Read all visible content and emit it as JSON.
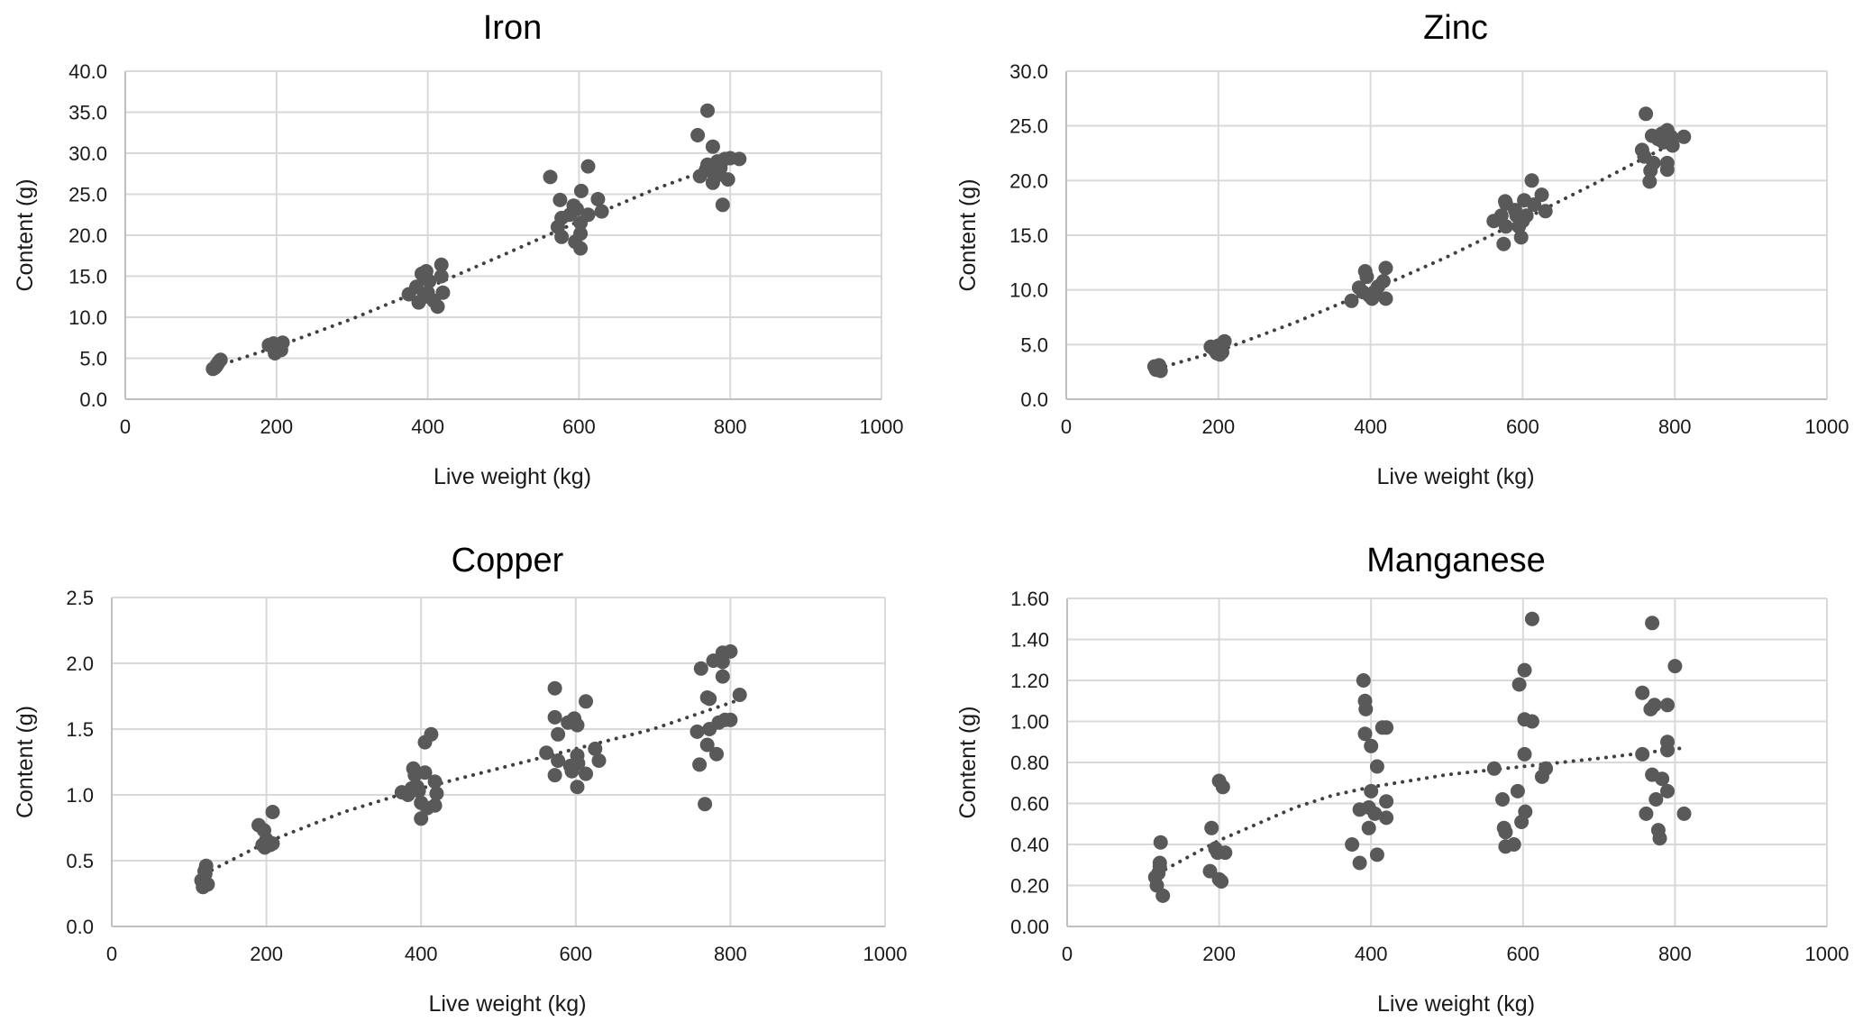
{
  "chart_data": [
    {
      "type": "scatter",
      "title": "Iron",
      "xlabel": "Live weight (kg)",
      "ylabel": "Content (g)",
      "xlim": [
        0,
        1000
      ],
      "ylim": [
        0,
        40
      ],
      "xticks": [
        0,
        200,
        400,
        600,
        800,
        1000
      ],
      "yticks": [
        "0.0",
        "5.0",
        "10.0",
        "15.0",
        "20.0",
        "25.0",
        "30.0",
        "35.0",
        "40.0"
      ],
      "grid": true,
      "legend": "none",
      "points": [
        [
          118,
          3.8
        ],
        [
          120,
          4.0
        ],
        [
          122,
          4.3
        ],
        [
          124,
          4.6
        ],
        [
          126,
          4.8
        ],
        [
          116,
          3.7
        ],
        [
          121,
          4.2
        ],
        [
          190,
          6.6
        ],
        [
          196,
          6.8
        ],
        [
          200,
          6.2
        ],
        [
          198,
          5.6
        ],
        [
          204,
          6.5
        ],
        [
          206,
          6.0
        ],
        [
          208,
          6.9
        ],
        [
          375,
          12.8
        ],
        [
          385,
          13.7
        ],
        [
          388,
          11.8
        ],
        [
          392,
          15.3
        ],
        [
          398,
          15.6
        ],
        [
          402,
          14.4
        ],
        [
          400,
          13.0
        ],
        [
          408,
          12.0
        ],
        [
          413,
          11.3
        ],
        [
          418,
          15.0
        ],
        [
          418,
          16.4
        ],
        [
          420,
          13.0
        ],
        [
          395,
          12.5
        ],
        [
          396,
          14.8
        ],
        [
          562,
          27.1
        ],
        [
          575,
          24.3
        ],
        [
          577,
          22.1
        ],
        [
          572,
          21.0
        ],
        [
          577,
          19.8
        ],
        [
          588,
          22.5
        ],
        [
          593,
          23.6
        ],
        [
          597,
          23.2
        ],
        [
          595,
          19.2
        ],
        [
          602,
          21.5
        ],
        [
          602,
          20.2
        ],
        [
          602,
          18.4
        ],
        [
          603,
          25.4
        ],
        [
          612,
          28.4
        ],
        [
          612,
          22.5
        ],
        [
          625,
          24.4
        ],
        [
          630,
          22.9
        ],
        [
          757,
          32.2
        ],
        [
          770,
          35.2
        ],
        [
          777,
          30.8
        ],
        [
          760,
          27.2
        ],
        [
          768,
          28.0
        ],
        [
          770,
          28.6
        ],
        [
          775,
          27.8
        ],
        [
          777,
          26.4
        ],
        [
          783,
          29.0
        ],
        [
          787,
          28.2
        ],
        [
          785,
          27.4
        ],
        [
          790,
          23.7
        ],
        [
          793,
          29.3
        ],
        [
          800,
          29.4
        ],
        [
          797,
          26.8
        ],
        [
          812,
          29.3
        ]
      ],
      "trendline": {
        "style": "dotted",
        "points": [
          [
            120,
            4.0
          ],
          [
            200,
            6.4
          ],
          [
            300,
            9.8
          ],
          [
            400,
            13.6
          ],
          [
            500,
            17.6
          ],
          [
            600,
            21.7
          ],
          [
            700,
            25.6
          ],
          [
            800,
            29.0
          ]
        ]
      }
    },
    {
      "type": "scatter",
      "title": "Zinc",
      "xlabel": "Live weight (kg)",
      "ylabel": "Content (g)",
      "xlim": [
        0,
        1000
      ],
      "ylim": [
        0,
        30
      ],
      "xticks": [
        0,
        200,
        400,
        600,
        800,
        1000
      ],
      "yticks": [
        "0.0",
        "5.0",
        "10.0",
        "15.0",
        "20.0",
        "25.0",
        "30.0"
      ],
      "grid": true,
      "legend": "none",
      "points": [
        [
          118,
          2.7
        ],
        [
          120,
          2.9
        ],
        [
          122,
          3.1
        ],
        [
          124,
          2.6
        ],
        [
          116,
          3.0
        ],
        [
          190,
          4.8
        ],
        [
          195,
          4.5
        ],
        [
          198,
          4.2
        ],
        [
          200,
          4.9
        ],
        [
          208,
          5.3
        ],
        [
          205,
          4.3
        ],
        [
          202,
          4.1
        ],
        [
          375,
          9.0
        ],
        [
          385,
          10.2
        ],
        [
          390,
          9.8
        ],
        [
          393,
          11.7
        ],
        [
          395,
          11.2
        ],
        [
          398,
          9.5
        ],
        [
          402,
          9.2
        ],
        [
          405,
          9.8
        ],
        [
          410,
          10.3
        ],
        [
          417,
          10.8
        ],
        [
          420,
          12.0
        ],
        [
          420,
          9.2
        ],
        [
          562,
          16.3
        ],
        [
          572,
          16.8
        ],
        [
          577,
          18.1
        ],
        [
          578,
          17.9
        ],
        [
          578,
          15.8
        ],
        [
          575,
          14.2
        ],
        [
          590,
          17.3
        ],
        [
          592,
          16.8
        ],
        [
          595,
          15.8
        ],
        [
          598,
          14.8
        ],
        [
          600,
          16.3
        ],
        [
          602,
          18.2
        ],
        [
          605,
          16.8
        ],
        [
          612,
          20.0
        ],
        [
          615,
          17.8
        ],
        [
          625,
          18.7
        ],
        [
          630,
          17.2
        ],
        [
          762,
          26.1
        ],
        [
          757,
          22.8
        ],
        [
          760,
          22.2
        ],
        [
          770,
          24.1
        ],
        [
          772,
          21.6
        ],
        [
          768,
          20.9
        ],
        [
          767,
          19.9
        ],
        [
          778,
          23.8
        ],
        [
          783,
          24.3
        ],
        [
          785,
          23.5
        ],
        [
          790,
          24.6
        ],
        [
          795,
          24.0
        ],
        [
          797,
          23.2
        ],
        [
          790,
          21.6
        ],
        [
          790,
          21.0
        ],
        [
          812,
          24.0
        ]
      ],
      "trendline": {
        "style": "dotted",
        "points": [
          [
            120,
            2.8
          ],
          [
            200,
            4.4
          ],
          [
            300,
            7.0
          ],
          [
            400,
            9.9
          ],
          [
            500,
            13.0
          ],
          [
            600,
            16.4
          ],
          [
            700,
            19.9
          ],
          [
            800,
            23.5
          ]
        ]
      }
    },
    {
      "type": "scatter",
      "title": "Copper",
      "xlabel": "Live weight (kg)",
      "ylabel": "Content (g)",
      "xlim": [
        0,
        1000
      ],
      "ylim": [
        0,
        2.5
      ],
      "xticks": [
        0,
        200,
        400,
        600,
        800,
        1000
      ],
      "yticks": [
        "0.0",
        "0.5",
        "1.0",
        "1.5",
        "2.0",
        "2.5"
      ],
      "grid": true,
      "legend": "none",
      "points": [
        [
          116,
          0.35
        ],
        [
          118,
          0.3
        ],
        [
          120,
          0.42
        ],
        [
          122,
          0.46
        ],
        [
          124,
          0.32
        ],
        [
          121,
          0.4
        ],
        [
          190,
          0.77
        ],
        [
          197,
          0.73
        ],
        [
          195,
          0.62
        ],
        [
          198,
          0.6
        ],
        [
          200,
          0.66
        ],
        [
          205,
          0.62
        ],
        [
          208,
          0.87
        ],
        [
          208,
          0.63
        ],
        [
          375,
          1.02
        ],
        [
          383,
          1.0
        ],
        [
          388,
          1.05
        ],
        [
          390,
          1.2
        ],
        [
          392,
          1.15
        ],
        [
          395,
          1.06
        ],
        [
          397,
          1.03
        ],
        [
          400,
          0.94
        ],
        [
          400,
          0.82
        ],
        [
          405,
          1.17
        ],
        [
          405,
          1.4
        ],
        [
          408,
          0.9
        ],
        [
          413,
          1.46
        ],
        [
          418,
          1.1
        ],
        [
          418,
          0.92
        ],
        [
          420,
          1.01
        ],
        [
          562,
          1.32
        ],
        [
          573,
          1.81
        ],
        [
          573,
          1.59
        ],
        [
          577,
          1.46
        ],
        [
          577,
          1.26
        ],
        [
          573,
          1.15
        ],
        [
          590,
          1.55
        ],
        [
          593,
          1.22
        ],
        [
          595,
          1.18
        ],
        [
          598,
          1.58
        ],
        [
          602,
          1.53
        ],
        [
          602,
          1.3
        ],
        [
          603,
          1.24
        ],
        [
          602,
          1.06
        ],
        [
          613,
          1.71
        ],
        [
          613,
          1.16
        ],
        [
          625,
          1.35
        ],
        [
          630,
          1.26
        ],
        [
          762,
          1.96
        ],
        [
          757,
          1.48
        ],
        [
          760,
          1.23
        ],
        [
          767,
          0.93
        ],
        [
          770,
          1.74
        ],
        [
          773,
          1.73
        ],
        [
          770,
          1.38
        ],
        [
          773,
          1.5
        ],
        [
          778,
          2.02
        ],
        [
          782,
          1.31
        ],
        [
          785,
          1.55
        ],
        [
          790,
          2.08
        ],
        [
          790,
          2.01
        ],
        [
          790,
          1.9
        ],
        [
          793,
          1.57
        ],
        [
          800,
          2.09
        ],
        [
          800,
          1.57
        ],
        [
          812,
          1.76
        ]
      ],
      "trendline": {
        "style": "dotted",
        "points": [
          [
            120,
            0.4
          ],
          [
            200,
            0.64
          ],
          [
            300,
            0.87
          ],
          [
            400,
            1.05
          ],
          [
            500,
            1.2
          ],
          [
            600,
            1.35
          ],
          [
            700,
            1.5
          ],
          [
            810,
            1.72
          ]
        ]
      }
    },
    {
      "type": "scatter",
      "title": "Manganese",
      "xlabel": "Live weight (kg)",
      "ylabel": "Content (g)",
      "xlim": [
        0,
        1000
      ],
      "ylim": [
        0,
        1.6
      ],
      "xticks": [
        0,
        200,
        400,
        600,
        800,
        1000
      ],
      "yticks": [
        "0.00",
        "0.20",
        "0.40",
        "0.60",
        "0.80",
        "1.00",
        "1.20",
        "1.40",
        "1.60"
      ],
      "grid": true,
      "legend": "none",
      "points": [
        [
          116,
          0.24
        ],
        [
          118,
          0.2
        ],
        [
          120,
          0.26
        ],
        [
          122,
          0.31
        ],
        [
          122,
          0.29
        ],
        [
          123,
          0.41
        ],
        [
          126,
          0.15
        ],
        [
          190,
          0.48
        ],
        [
          188,
          0.27
        ],
        [
          195,
          0.38
        ],
        [
          198,
          0.36
        ],
        [
          200,
          0.23
        ],
        [
          203,
          0.22
        ],
        [
          200,
          0.71
        ],
        [
          205,
          0.68
        ],
        [
          208,
          0.36
        ],
        [
          375,
          0.4
        ],
        [
          385,
          0.31
        ],
        [
          385,
          0.57
        ],
        [
          390,
          1.2
        ],
        [
          392,
          1.1
        ],
        [
          393,
          1.06
        ],
        [
          392,
          0.94
        ],
        [
          397,
          0.58
        ],
        [
          397,
          0.48
        ],
        [
          400,
          0.66
        ],
        [
          400,
          0.88
        ],
        [
          405,
          0.55
        ],
        [
          408,
          0.78
        ],
        [
          408,
          0.35
        ],
        [
          415,
          0.97
        ],
        [
          420,
          0.97
        ],
        [
          420,
          0.61
        ],
        [
          420,
          0.53
        ],
        [
          562,
          0.77
        ],
        [
          573,
          0.62
        ],
        [
          575,
          0.48
        ],
        [
          577,
          0.46
        ],
        [
          577,
          0.39
        ],
        [
          588,
          0.4
        ],
        [
          593,
          0.66
        ],
        [
          595,
          1.18
        ],
        [
          598,
          0.51
        ],
        [
          602,
          1.25
        ],
        [
          602,
          1.01
        ],
        [
          602,
          0.84
        ],
        [
          603,
          0.56
        ],
        [
          612,
          1.0
        ],
        [
          612,
          1.5
        ],
        [
          625,
          0.73
        ],
        [
          630,
          0.77
        ],
        [
          757,
          1.14
        ],
        [
          757,
          0.84
        ],
        [
          762,
          0.55
        ],
        [
          770,
          1.48
        ],
        [
          768,
          1.06
        ],
        [
          773,
          1.08
        ],
        [
          770,
          0.74
        ],
        [
          775,
          0.62
        ],
        [
          778,
          0.47
        ],
        [
          780,
          0.43
        ],
        [
          783,
          0.72
        ],
        [
          790,
          1.08
        ],
        [
          790,
          0.9
        ],
        [
          790,
          0.86
        ],
        [
          790,
          0.66
        ],
        [
          800,
          1.27
        ],
        [
          812,
          0.55
        ]
      ],
      "trendline": {
        "style": "dotted",
        "points": [
          [
            120,
            0.26
          ],
          [
            160,
            0.34
          ],
          [
            200,
            0.42
          ],
          [
            250,
            0.5
          ],
          [
            300,
            0.58
          ],
          [
            350,
            0.64
          ],
          [
            400,
            0.68
          ],
          [
            500,
            0.74
          ],
          [
            600,
            0.78
          ],
          [
            700,
            0.82
          ],
          [
            810,
            0.87
          ]
        ]
      }
    }
  ]
}
